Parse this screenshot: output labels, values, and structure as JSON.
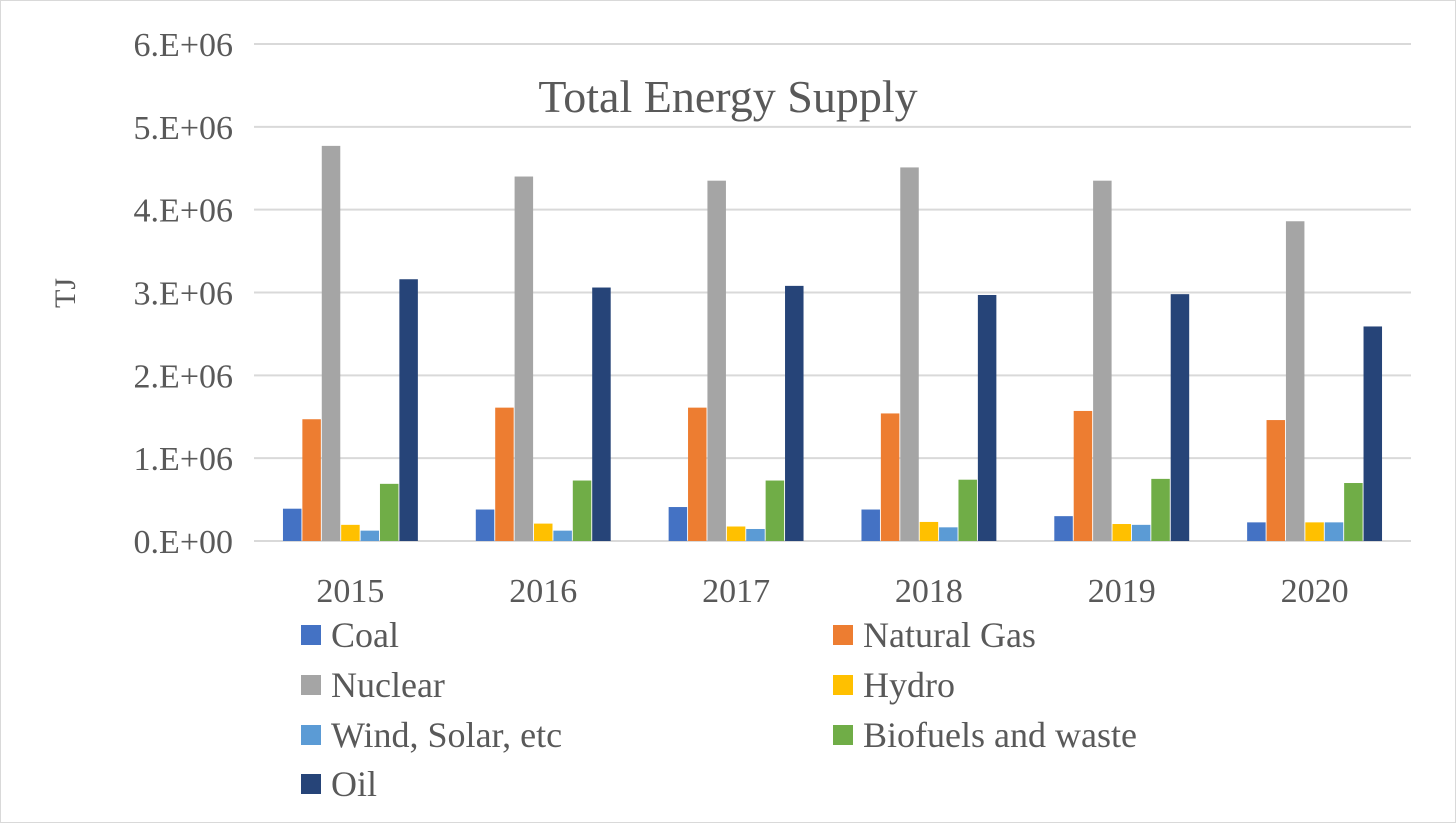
{
  "chart_data": {
    "type": "bar",
    "title": "Total Energy Supply",
    "xlabel": "",
    "ylabel": "TJ",
    "ylim": [
      0,
      6000000
    ],
    "yticks": [
      0,
      1000000,
      2000000,
      3000000,
      4000000,
      5000000,
      6000000
    ],
    "ytick_labels": [
      "0.E+00",
      "1.E+06",
      "2.E+06",
      "3.E+06",
      "4.E+06",
      "5.E+06",
      "6.E+06"
    ],
    "categories": [
      "2015",
      "2016",
      "2017",
      "2018",
      "2019",
      "2020"
    ],
    "grid": true,
    "legend_position": "bottom",
    "series": [
      {
        "name": "Coal",
        "color": "#4472C4",
        "values": [
          390000,
          380000,
          410000,
          380000,
          300000,
          225000
        ]
      },
      {
        "name": "Natural Gas",
        "color": "#ED7D31",
        "values": [
          1470000,
          1610000,
          1610000,
          1540000,
          1570000,
          1460000
        ]
      },
      {
        "name": "Nuclear",
        "color": "#A5A5A5",
        "values": [
          4770000,
          4400000,
          4350000,
          4510000,
          4350000,
          3860000
        ]
      },
      {
        "name": "Hydro",
        "color": "#FFC000",
        "values": [
          195000,
          210000,
          175000,
          230000,
          205000,
          225000
        ]
      },
      {
        "name": "Wind, Solar, etc",
        "color": "#5B9BD5",
        "values": [
          125000,
          125000,
          145000,
          165000,
          195000,
          225000
        ]
      },
      {
        "name": "Biofuels and waste",
        "color": "#70AD47",
        "values": [
          690000,
          730000,
          730000,
          740000,
          750000,
          700000
        ]
      },
      {
        "name": "Oil",
        "color": "#264478",
        "values": [
          3160000,
          3060000,
          3080000,
          2970000,
          2980000,
          2590000
        ]
      }
    ]
  }
}
